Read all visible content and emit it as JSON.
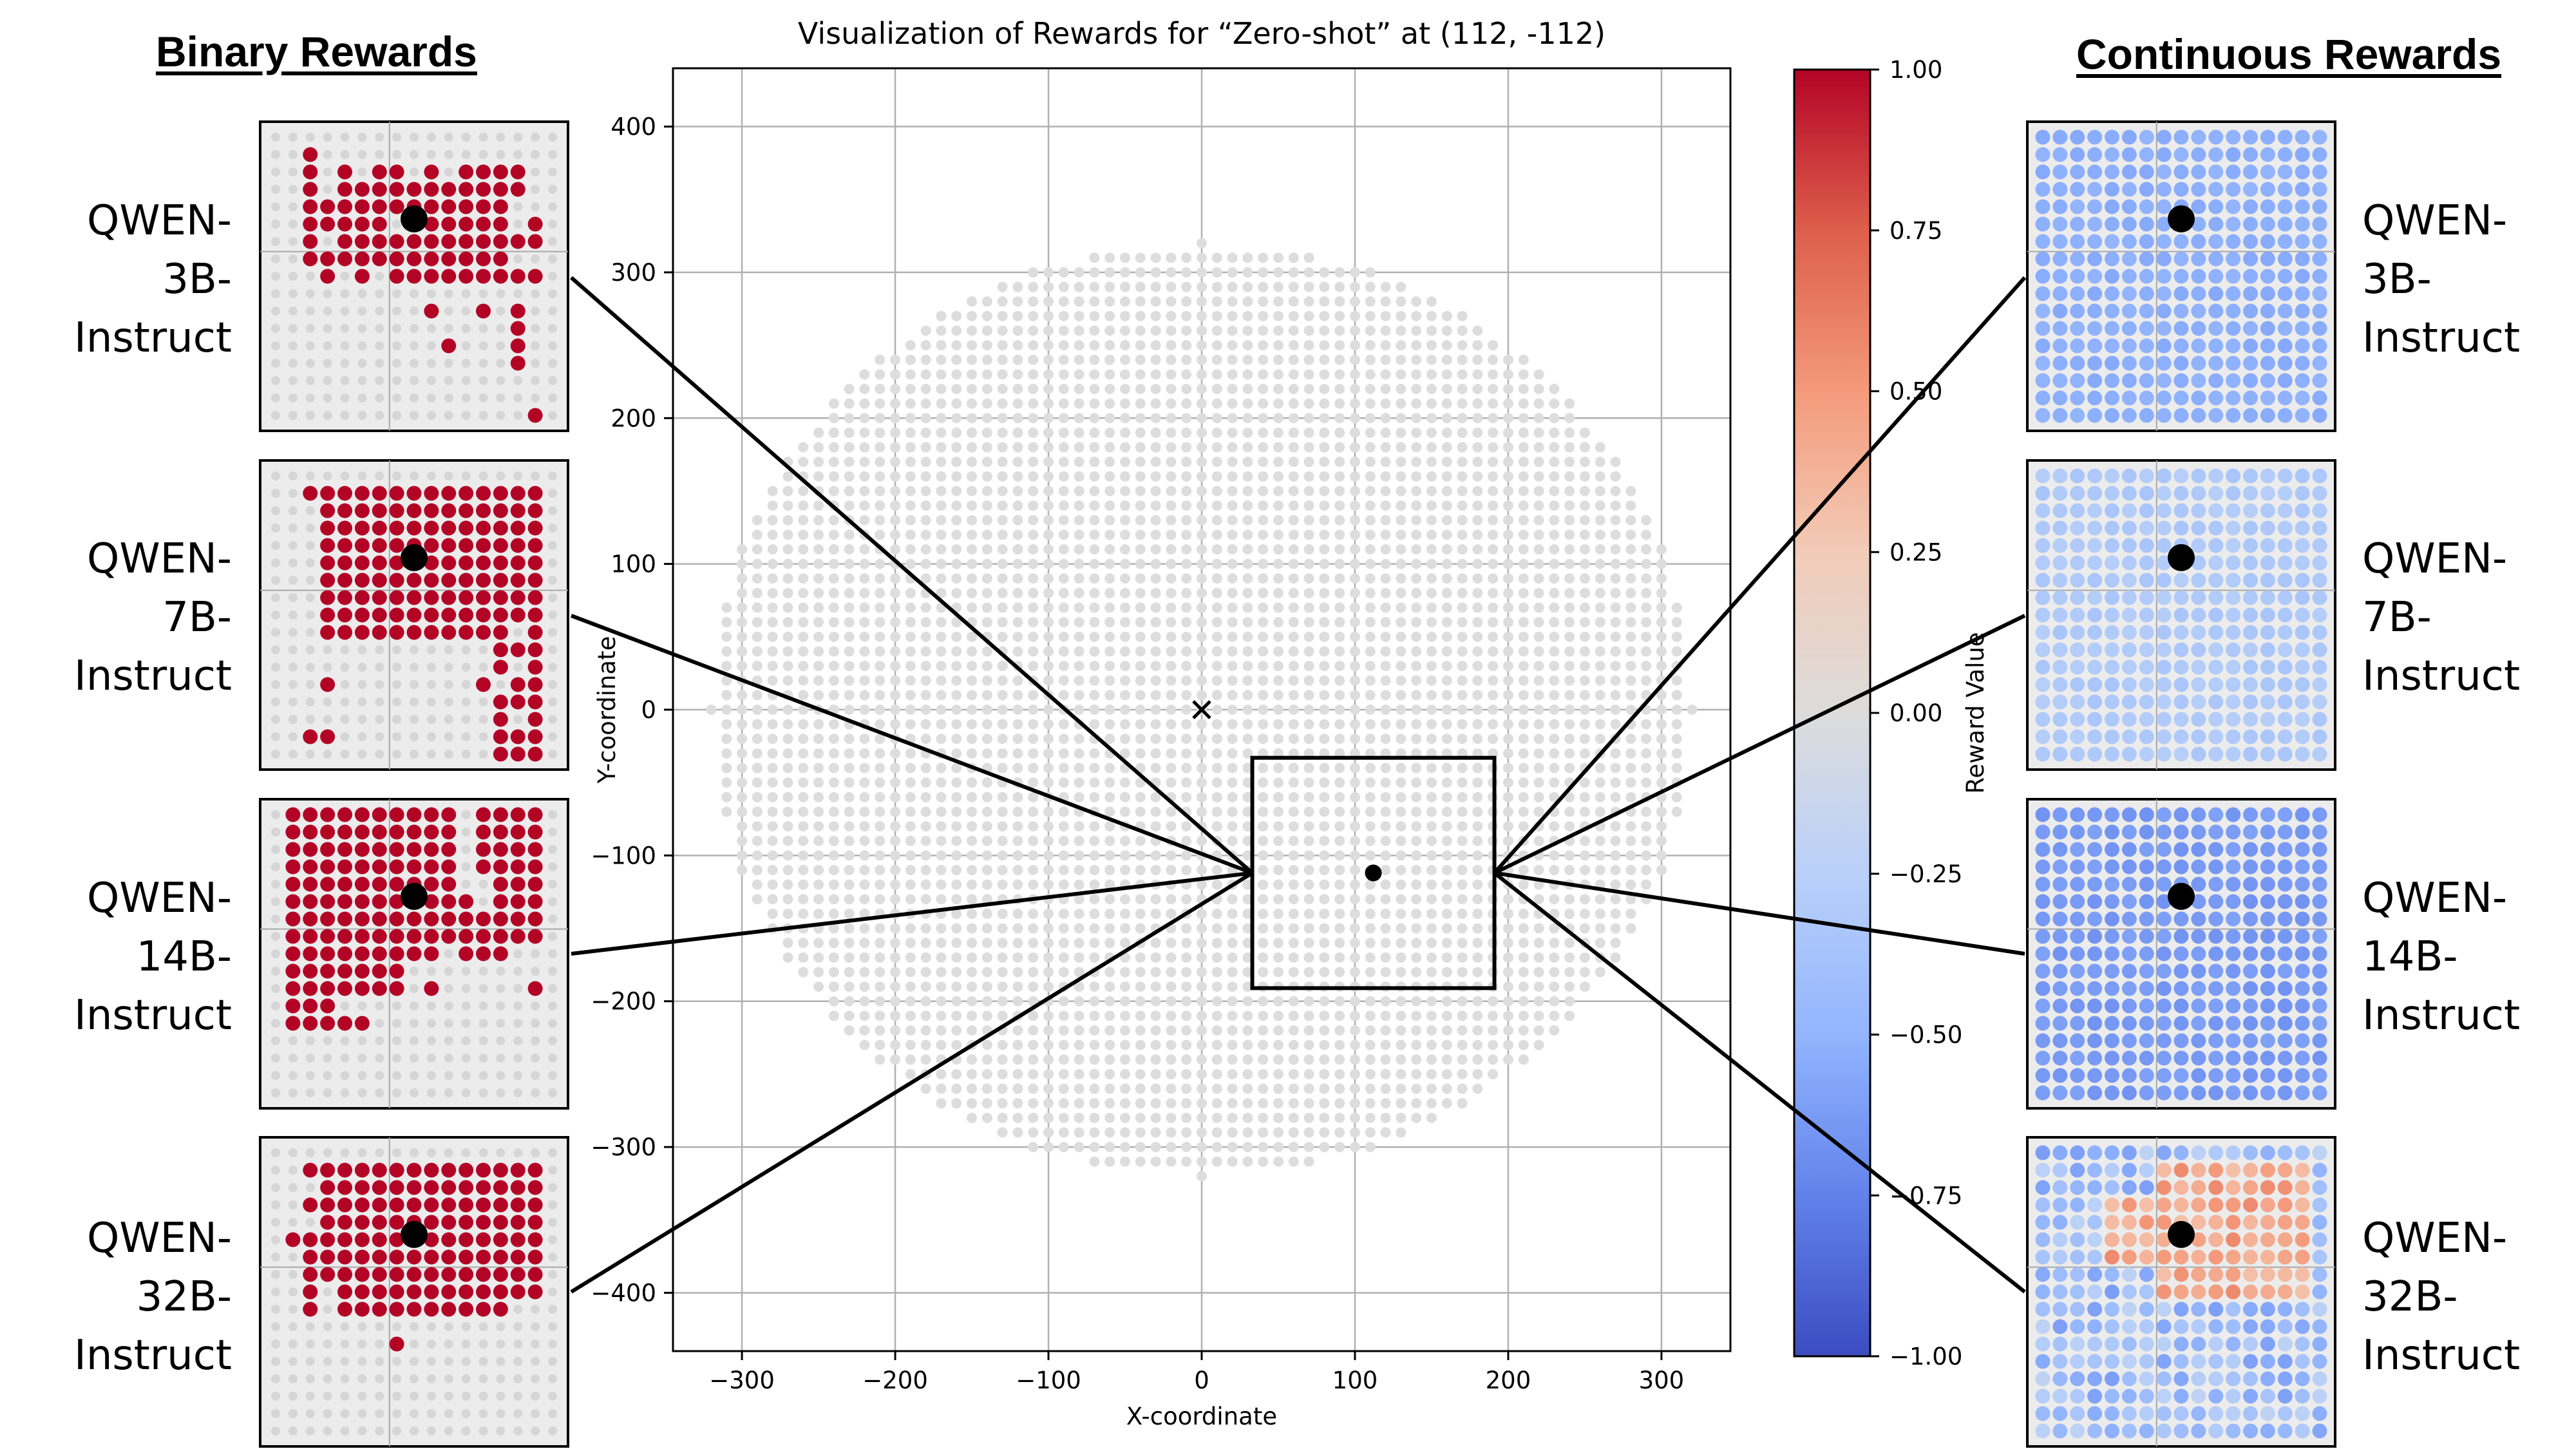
{
  "headers": {
    "binary": "Binary Rewards",
    "continuous": "Continuous Rewards"
  },
  "models": [
    {
      "lines": [
        "QWEN-",
        "3B-",
        "Instruct"
      ]
    },
    {
      "lines": [
        "QWEN-",
        "7B-",
        "Instruct"
      ]
    },
    {
      "lines": [
        "QWEN-",
        "14B-",
        "Instruct"
      ]
    },
    {
      "lines": [
        "QWEN-",
        "32B-",
        "Instruct"
      ]
    }
  ],
  "colors": {
    "positive_reward": "#b40426",
    "no_reward": "#dddddd",
    "zoom_marker": "#000000"
  },
  "chart_data": {
    "type": "scatter",
    "title": "Visualization of Rewards for “Zero-shot” at (112, -112)",
    "xlabel": "X-coordinate",
    "ylabel": "Y-coordinate",
    "xlim": [
      -345,
      345
    ],
    "ylim": [
      -440,
      440
    ],
    "x_ticks": [
      -300,
      -200,
      -100,
      0,
      100,
      200,
      300
    ],
    "y_ticks": [
      -400,
      -300,
      -200,
      -100,
      0,
      100,
      200,
      300,
      400
    ],
    "x_tick_labels": [
      "−300",
      "−200",
      "−100",
      "0",
      "100",
      "200",
      "300"
    ],
    "y_tick_labels": [
      "−400",
      "−300",
      "−200",
      "−100",
      "0",
      "100",
      "200",
      "300",
      "400"
    ],
    "grid": true,
    "target_point": [
      112,
      -112
    ],
    "origin_marker": [
      0,
      0
    ],
    "zoom_box": {
      "x": [
        33,
        191
      ],
      "y": [
        -191,
        -33
      ]
    },
    "point_cloud": {
      "grid_spacing": 10,
      "radius_x": 320,
      "radius_y": 320,
      "value": 0.0
    },
    "colorbar": {
      "label": "Reward Value",
      "min": -1.0,
      "max": 1.0,
      "ticks": [
        1.0,
        0.75,
        0.5,
        0.25,
        0.0,
        -0.25,
        -0.5,
        -0.75,
        -1.0
      ],
      "tick_labels": [
        "1.00",
        "0.75",
        "0.50",
        "0.25",
        "0.00",
        "−0.25",
        "−0.50",
        "−0.75",
        "−1.00"
      ],
      "colormap": "coolwarm"
    },
    "insets": {
      "grid_size": 17,
      "target_cell": [
        8,
        10
      ],
      "binary": [
        {
          "model": "QWEN-3B-Instruct",
          "rows": [
            "00000000000000000",
            "00100000000000000",
            "00101011010111100",
            "00101111111111100",
            "00111111111111000",
            "00111110111111010",
            "00101111111111110",
            "00111111111111000",
            "00010101111111110",
            "00000000000000000",
            "00000000010010100",
            "00000000000000100",
            "00000000001000100",
            "00000000000000100",
            "00000000000000000",
            "00000000000000000",
            "00000000000000010"
          ]
        },
        {
          "model": "QWEN-7B-Instruct",
          "rows": [
            "00000000000000000",
            "00111111111111110",
            "00011111111111110",
            "00011111111111110",
            "00011111111111110",
            "00011111111111110",
            "00011111111111110",
            "00011111111111110",
            "00011111111111110",
            "00011111111111010",
            "00000000000001110",
            "00000000000001010",
            "00010000000010110",
            "00000000000001110",
            "00000000000001010",
            "00110000000001110",
            "00000000000001110"
          ]
        },
        {
          "model": "QWEN-14B-Instruct",
          "rows": [
            "01111111111011110",
            "01111111111011110",
            "01111111111011110",
            "01111111111011110",
            "01111111111001110",
            "01111111111101110",
            "01111111111111110",
            "01111111111111110",
            "01111111110111000",
            "01111111000000000",
            "01111111010000010",
            "01110000000000000",
            "01111100000000000",
            "00000000000000000",
            "00000000000000000",
            "00000000000000000",
            "00000000000000000"
          ]
        },
        {
          "model": "QWEN-32B-Instruct",
          "rows": [
            "00000000000000000",
            "00111111111111110",
            "00011111111111110",
            "00111111111111110",
            "00011111111111110",
            "01111111111111110",
            "00111111111111110",
            "00111111111111110",
            "00101111111111110",
            "00101111111111000",
            "00000000000000000",
            "00000001000000000",
            "00000000000000000",
            "00000000000000000",
            "00000000000000000",
            "00000000000000000",
            "00000000000000000"
          ]
        }
      ],
      "continuous": [
        {
          "model": "QWEN-3B-Instruct",
          "pattern": "uniform",
          "value": -0.5
        },
        {
          "model": "QWEN-7B-Instruct",
          "pattern": "uniform",
          "value": -0.3
        },
        {
          "model": "QWEN-14B-Instruct",
          "pattern": "uniform",
          "value": -0.62
        },
        {
          "model": "QWEN-32B-Instruct",
          "pattern": "mixed",
          "high_value": 0.42,
          "low_value": -0.4
        }
      ]
    }
  }
}
